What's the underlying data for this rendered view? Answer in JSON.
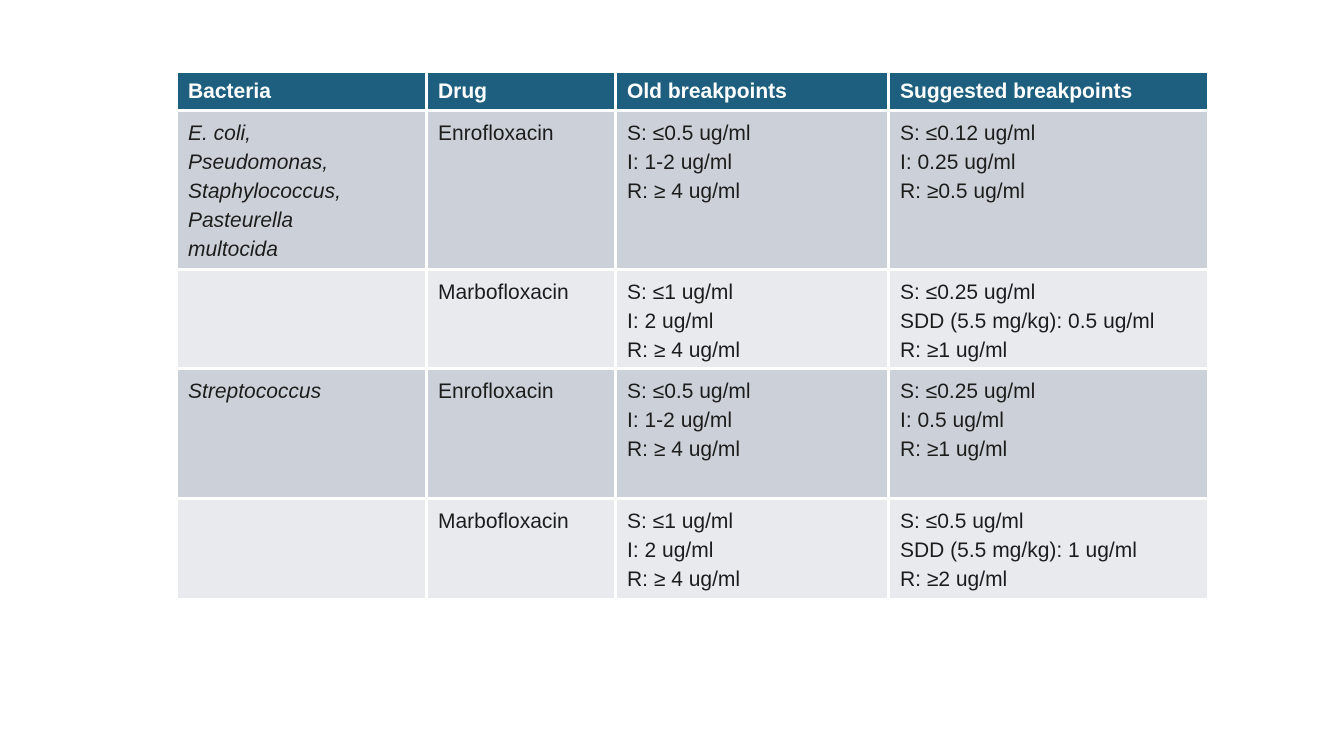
{
  "table": {
    "columns": [
      "Bacteria",
      "Drug",
      "Old breakpoints",
      "Suggested breakpoints"
    ],
    "rows": [
      {
        "bacteria_lines": [
          "E. coli,",
          "Pseudomonas,",
          "Staphylococcus,",
          "Pasteurella",
          "multocida"
        ],
        "drug": "Enrofloxacin",
        "old": [
          "S: ≤0.5 ug/ml",
          "I: 1-2 ug/ml",
          "R: ≥ 4 ug/ml"
        ],
        "suggested": [
          "S: ≤0.12 ug/ml",
          "I: 0.25 ug/ml",
          "R: ≥0.5 ug/ml"
        ]
      },
      {
        "bacteria_lines": [],
        "drug": "Marbofloxacin",
        "old": [
          "S: ≤1 ug/ml",
          "I: 2 ug/ml",
          "R: ≥ 4 ug/ml"
        ],
        "suggested": [
          "S: ≤0.25 ug/ml",
          "SDD (5.5 mg/kg): 0.5 ug/ml",
          "R: ≥1 ug/ml"
        ]
      },
      {
        "bacteria_lines": [
          "Streptococcus"
        ],
        "drug": "Enrofloxacin",
        "old": [
          "S: ≤0.5 ug/ml",
          "I: 1-2 ug/ml",
          "R: ≥ 4 ug/ml"
        ],
        "suggested": [
          "S: ≤0.25 ug/ml",
          "I: 0.5 ug/ml",
          "R: ≥1 ug/ml"
        ]
      },
      {
        "bacteria_lines": [],
        "drug": "Marbofloxacin",
        "old": [
          "S: ≤1 ug/ml",
          "I: 2 ug/ml",
          "R: ≥ 4 ug/ml"
        ],
        "suggested": [
          "S: ≤0.5 ug/ml",
          "SDD (5.5 mg/kg): 1 ug/ml",
          "R: ≥2 ug/ml"
        ]
      }
    ],
    "colors": {
      "header_bg": "#1e5f80",
      "header_text": "#ffffff",
      "row_dark_bg": "#ccd1d9",
      "row_light_bg": "#e8eaee",
      "body_text": "#1c1c1c",
      "page_bg": "#ffffff"
    }
  }
}
